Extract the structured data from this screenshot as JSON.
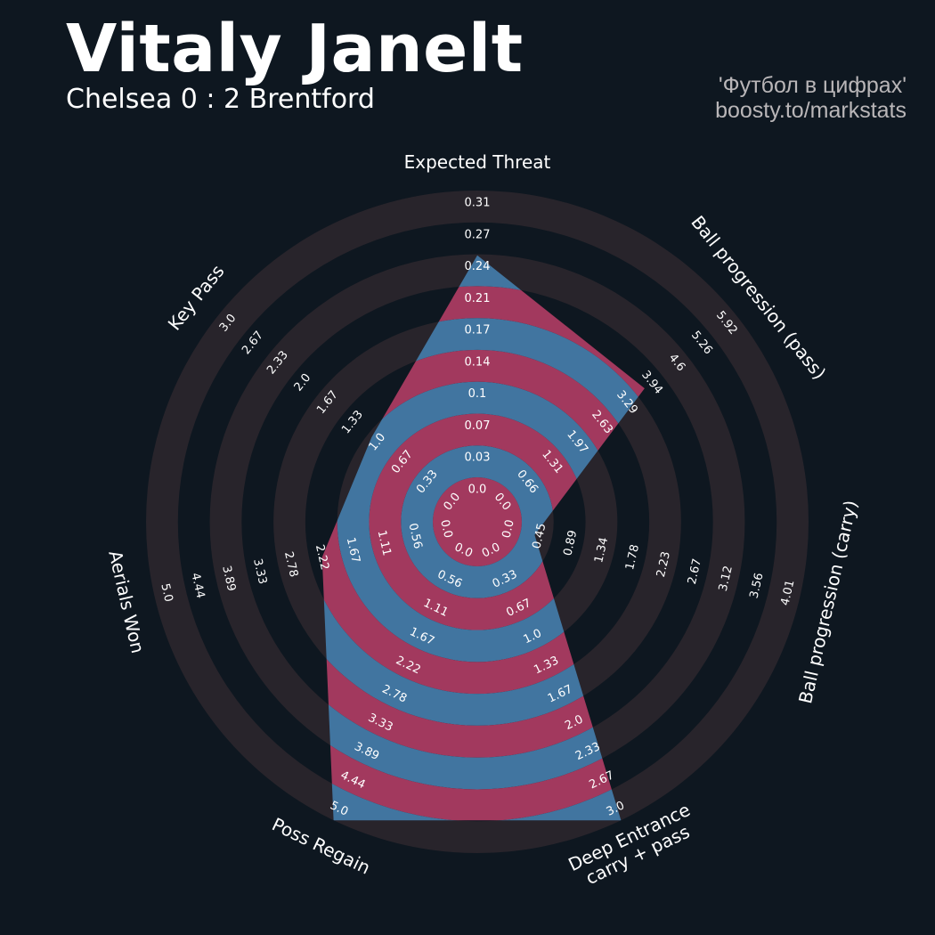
{
  "header": {
    "title": "Vitaly Janelt",
    "subtitle": "Chelsea 0 : 2 Brentford",
    "credit_line1": "'Футбол в цифрах'",
    "credit_line2": "boosty.to/markstats"
  },
  "colors": {
    "background": "#0e1720",
    "ring_base": "#28242b",
    "ring_alt": "#0e1720",
    "fill_primary": "#4175a0",
    "fill_secondary": "#a2395e",
    "text": "#ffffff",
    "credit_text": "#b9b6b8"
  },
  "chart_data": {
    "type": "radar",
    "params": [
      {
        "name": "Expected Threat",
        "lines": [
          "Expected Threat"
        ],
        "min": 0.0,
        "max": 0.31,
        "value": 0.24,
        "ticks": [
          "0.0",
          "0.03",
          "0.07",
          "0.1",
          "0.14",
          "0.17",
          "0.21",
          "0.24",
          "0.27",
          "0.31"
        ]
      },
      {
        "name": "Ball progression (pass)",
        "lines": [
          "Ball progression (pass)"
        ],
        "min": 0.0,
        "max": 5.92,
        "value": 3.5,
        "ticks": [
          "0.0",
          "0.66",
          "1.31",
          "1.97",
          "2.63",
          "3.29",
          "3.94",
          "4.6",
          "5.26",
          "5.92"
        ]
      },
      {
        "name": "Ball progression (carry)",
        "lines": [
          "Ball progression (carry)"
        ],
        "min": 0.0,
        "max": 4.01,
        "value": 0.2,
        "ticks": [
          "0.0",
          "0.45",
          "0.89",
          "1.34",
          "1.78",
          "2.23",
          "2.67",
          "3.12",
          "3.56",
          "4.01"
        ]
      },
      {
        "name": "Deep Entrance carry + pass",
        "lines": [
          "Deep Entrance",
          "carry + pass"
        ],
        "min": 0.0,
        "max": 3.0,
        "value": 3.0,
        "ticks": [
          "0.0",
          "0.33",
          "0.67",
          "1.0",
          "1.33",
          "1.67",
          "2.0",
          "2.33",
          "2.67",
          "3.0"
        ]
      },
      {
        "name": "Poss Regain",
        "lines": [
          "Poss Regain"
        ],
        "min": 0.0,
        "max": 5.0,
        "value": 5.0,
        "ticks": [
          "0.0",
          "0.56",
          "1.11",
          "1.67",
          "2.22",
          "2.78",
          "3.33",
          "3.89",
          "4.44",
          "5.0"
        ]
      },
      {
        "name": "Aerials Won",
        "lines": [
          "Aerials Won"
        ],
        "min": 0.0,
        "max": 5.0,
        "value": 2.0,
        "ticks": [
          "0.0",
          "0.56",
          "1.11",
          "1.67",
          "2.22",
          "2.78",
          "3.33",
          "3.89",
          "4.44",
          "5.0"
        ]
      },
      {
        "name": "Key Pass",
        "lines": [
          "Key Pass"
        ],
        "min": 0.0,
        "max": 3.0,
        "value": 0.95,
        "ticks": [
          "0.0",
          "0.33",
          "0.67",
          "1.0",
          "1.33",
          "1.67",
          "2.0",
          "2.33",
          "2.67",
          "3.0"
        ]
      }
    ]
  }
}
